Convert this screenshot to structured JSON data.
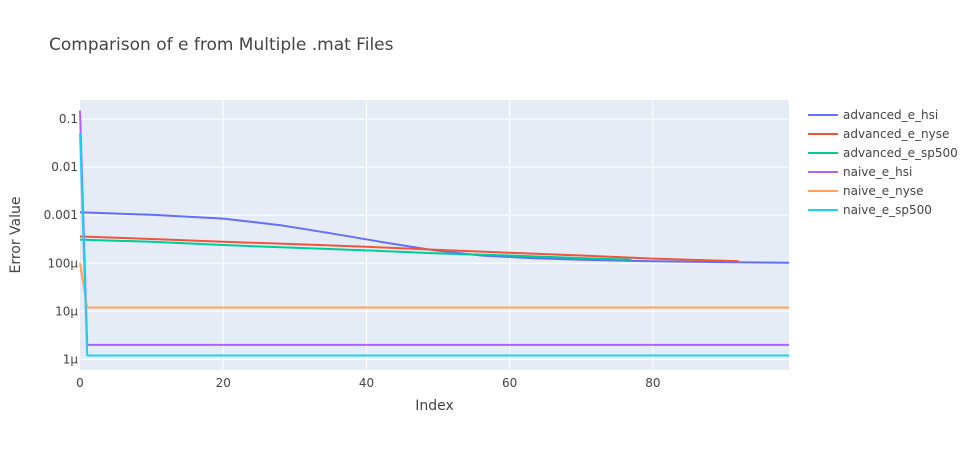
{
  "chart_data": {
    "type": "line",
    "title": "Comparison of e from Multiple .mat Files",
    "xlabel": "Index",
    "ylabel": "Error Value",
    "xlim": [
      0,
      99
    ],
    "ylim": [
      6e-07,
      0.25
    ],
    "y_scale": "log",
    "grid": true,
    "legend_position": "right",
    "x_ticks": [
      0,
      20,
      40,
      60,
      80
    ],
    "y_ticks": [
      {
        "value": 1e-06,
        "label": "1μ"
      },
      {
        "value": 1e-05,
        "label": "10μ"
      },
      {
        "value": 0.0001,
        "label": "100μ"
      },
      {
        "value": 0.001,
        "label": "0.001"
      },
      {
        "value": 0.01,
        "label": "0.01"
      },
      {
        "value": 0.1,
        "label": "0.1"
      }
    ],
    "series": [
      {
        "name": "advanced_e_hsi",
        "color": "#636efa",
        "x": [
          0,
          10,
          20,
          28,
          35,
          42,
          49,
          56,
          63,
          70,
          77,
          84,
          91,
          99
        ],
        "y": [
          0.00115,
          0.00102,
          0.00085,
          0.00062,
          0.00042,
          0.00028,
          0.00019,
          0.000145,
          0.000128,
          0.000118,
          0.000112,
          0.000108,
          0.000105,
          0.000102
        ]
      },
      {
        "name": "advanced_e_nyse",
        "color": "#ef553b",
        "x": [
          0,
          10,
          20,
          30,
          40,
          50,
          60,
          70,
          80,
          92
        ],
        "y": [
          0.00036,
          0.00032,
          0.00028,
          0.00025,
          0.00022,
          0.00019,
          0.000165,
          0.000145,
          0.000125,
          0.00011
        ]
      },
      {
        "name": "advanced_e_sp500",
        "color": "#00cc96",
        "x": [
          0,
          10,
          20,
          30,
          40,
          50,
          60,
          70,
          77
        ],
        "y": [
          0.00031,
          0.00028,
          0.00024,
          0.00021,
          0.000185,
          0.00016,
          0.000145,
          0.000128,
          0.000118
        ]
      },
      {
        "name": "naive_e_hsi",
        "color": "#ab63fa",
        "x": [
          0,
          1,
          99
        ],
        "y": [
          0.15,
          2e-06,
          2e-06
        ]
      },
      {
        "name": "naive_e_nyse",
        "color": "#ffa15a",
        "x": [
          0,
          1,
          99
        ],
        "y": [
          0.0001,
          1.2e-05,
          1.2e-05
        ]
      },
      {
        "name": "naive_e_sp500",
        "color": "#19d3f3",
        "x": [
          0,
          1,
          99
        ],
        "y": [
          0.05,
          1.2e-06,
          1.2e-06
        ]
      }
    ]
  }
}
